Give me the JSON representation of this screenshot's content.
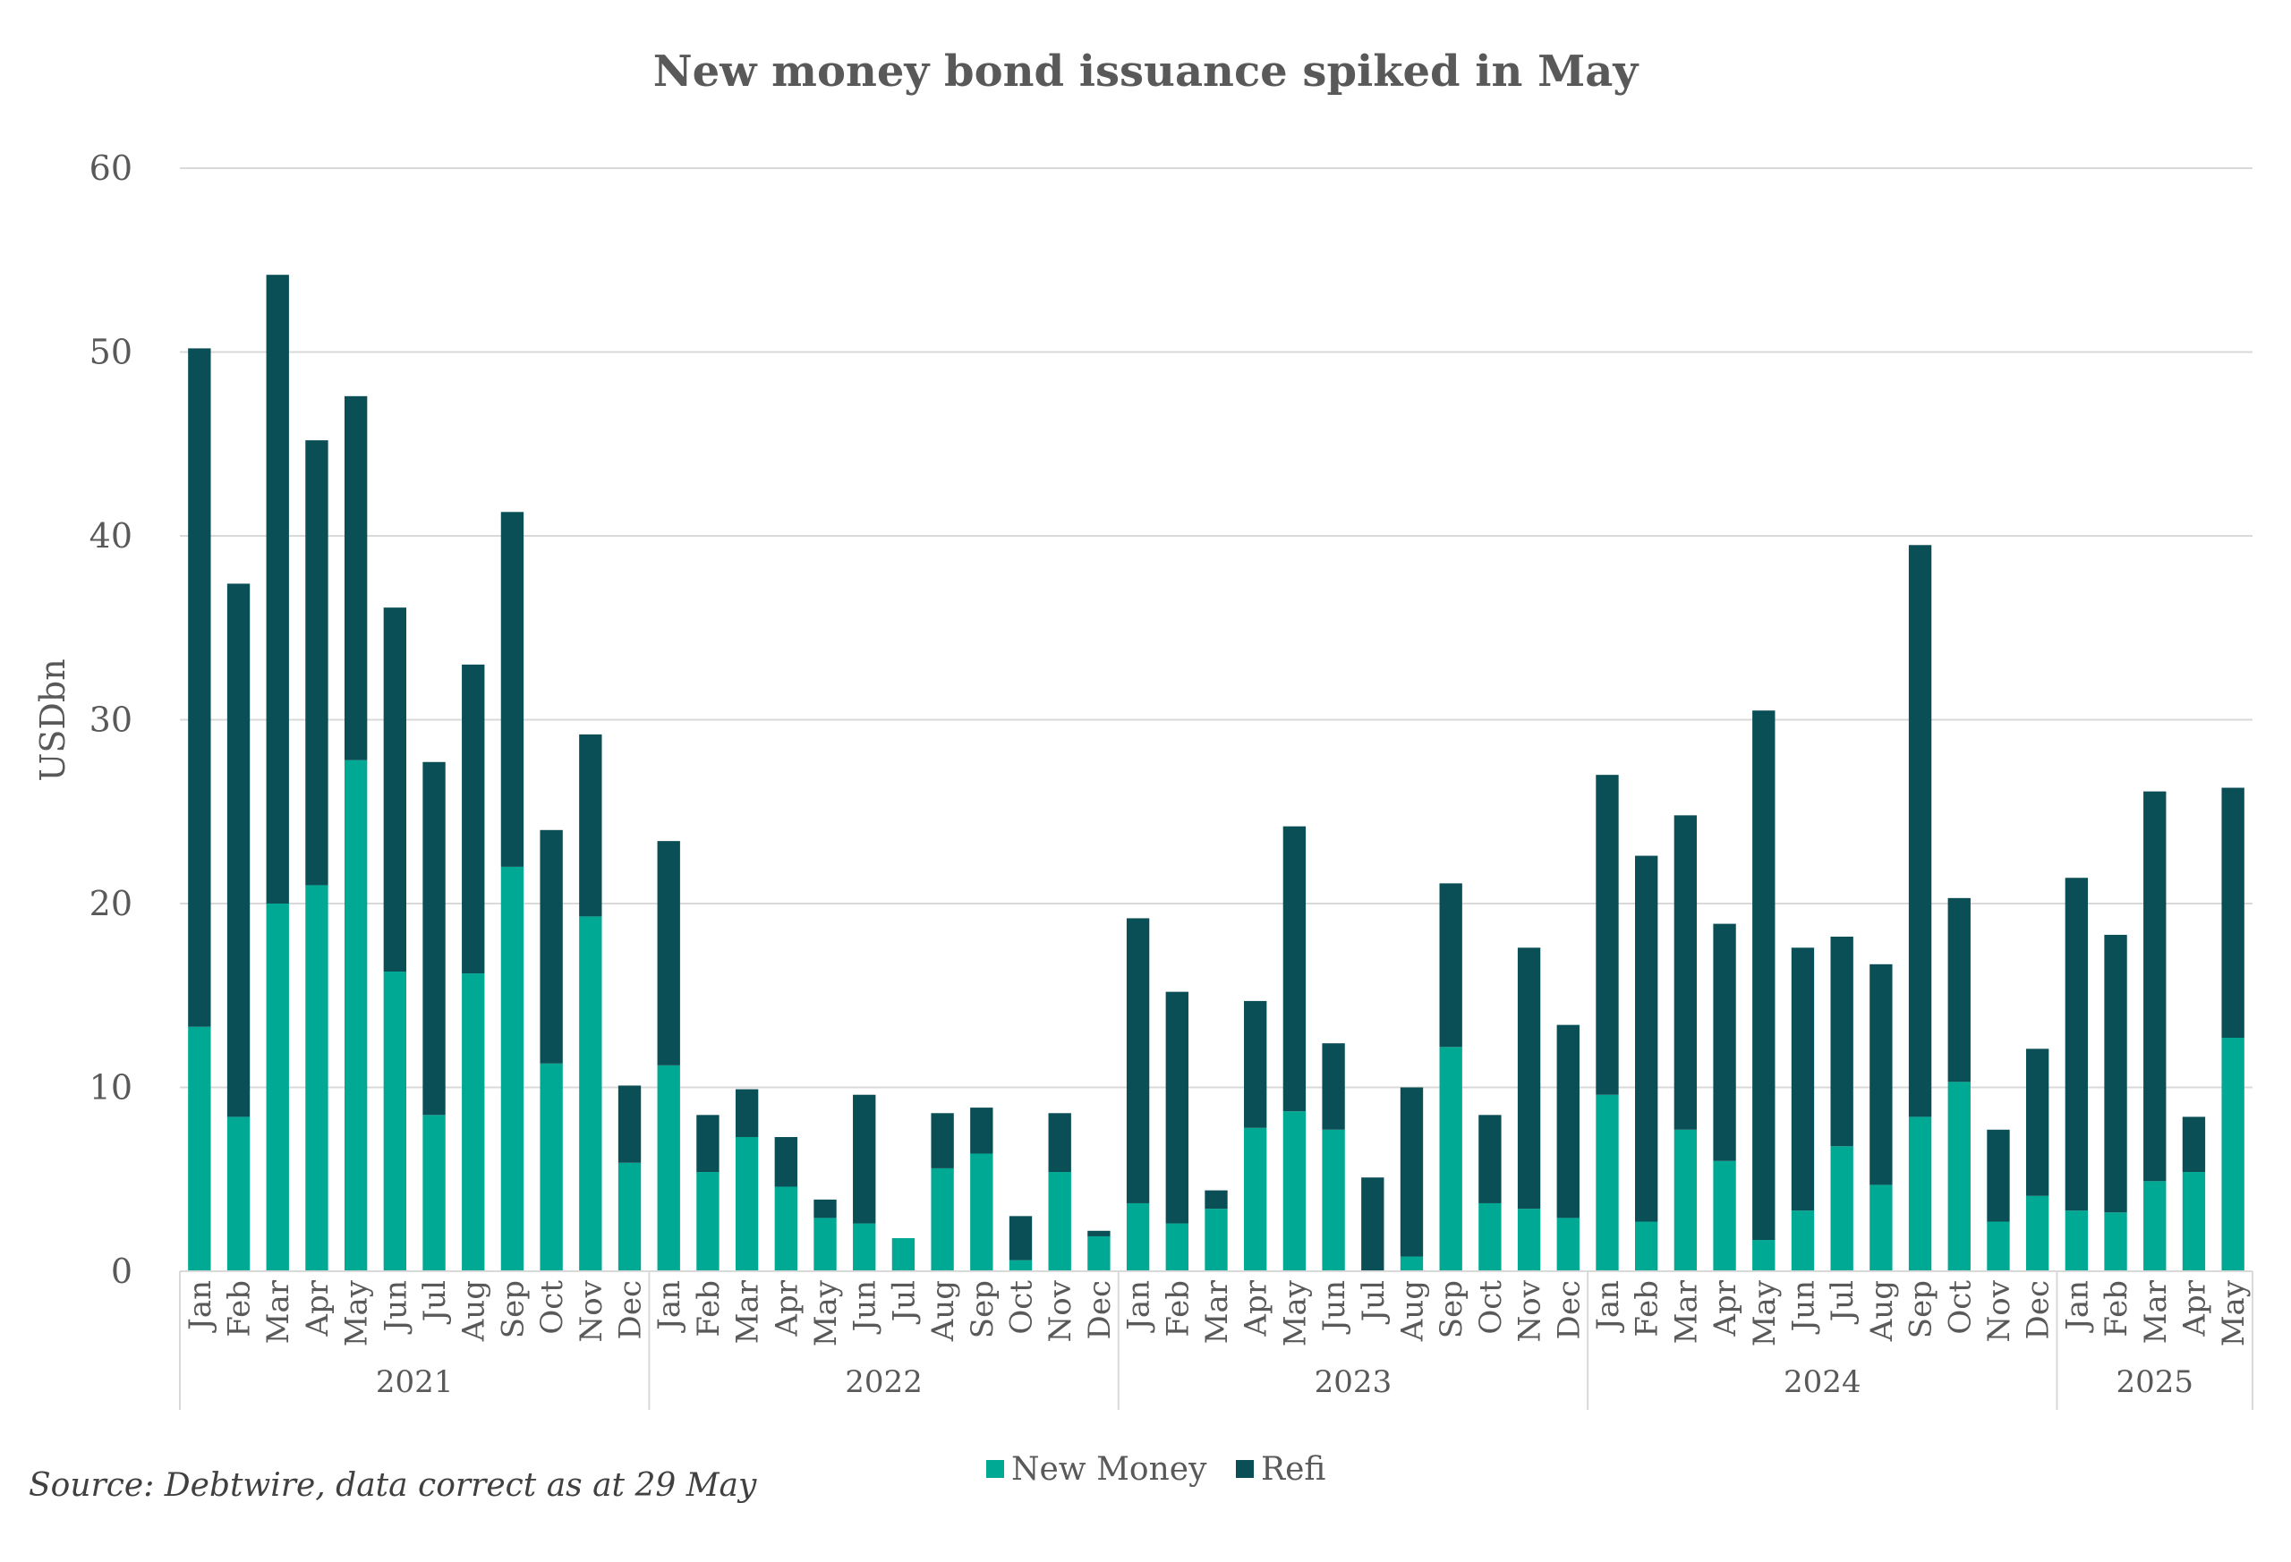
{
  "chart_data": {
    "type": "bar",
    "stacked": true,
    "title": "New money bond issuance spiked in May",
    "xlabel": "",
    "ylabel": "USDbn",
    "ylim": [
      0,
      60
    ],
    "yticks": [
      0,
      10,
      20,
      30,
      40,
      50,
      60
    ],
    "grid": true,
    "legend_position": "bottom",
    "source": "Source: Debtwire, data correct as at 29 May",
    "years": [
      {
        "label": "2021",
        "months": 12
      },
      {
        "label": "2022",
        "months": 12
      },
      {
        "label": "2023",
        "months": 12
      },
      {
        "label": "2024",
        "months": 12
      },
      {
        "label": "2025",
        "months": 5
      }
    ],
    "categories": [
      "Jan",
      "Feb",
      "Mar",
      "Apr",
      "May",
      "Jun",
      "Jul",
      "Aug",
      "Sep",
      "Oct",
      "Nov",
      "Dec",
      "Jan",
      "Feb",
      "Mar",
      "Apr",
      "May",
      "Jun",
      "Jul",
      "Aug",
      "Sep",
      "Oct",
      "Nov",
      "Dec",
      "Jan",
      "Feb",
      "Mar",
      "Apr",
      "May",
      "Jun",
      "Jul",
      "Aug",
      "Sep",
      "Oct",
      "Nov",
      "Dec",
      "Jan",
      "Feb",
      "Mar",
      "Apr",
      "May",
      "Jun",
      "Jul",
      "Aug",
      "Sep",
      "Oct",
      "Nov",
      "Dec",
      "Jan",
      "Feb",
      "Mar",
      "Apr",
      "May"
    ],
    "series": [
      {
        "name": "New Money",
        "color": "#00a994",
        "values": [
          13.3,
          8.4,
          20.0,
          21.0,
          27.8,
          16.3,
          8.5,
          16.2,
          22.0,
          11.3,
          19.3,
          5.9,
          11.2,
          5.4,
          7.3,
          4.6,
          2.9,
          2.6,
          1.8,
          5.6,
          6.4,
          0.6,
          5.4,
          1.9,
          3.7,
          2.6,
          3.4,
          7.8,
          8.7,
          7.7,
          0.0,
          0.8,
          12.2,
          3.7,
          3.4,
          2.9,
          9.6,
          2.7,
          7.7,
          6.0,
          1.7,
          3.3,
          6.8,
          4.7,
          8.4,
          10.3,
          2.7,
          4.1,
          3.3,
          3.2,
          4.9,
          5.4,
          12.7
        ]
      },
      {
        "name": "Refi",
        "color": "#0a4f55",
        "values": [
          36.9,
          29.0,
          34.2,
          24.2,
          19.8,
          19.8,
          19.2,
          16.8,
          19.3,
          12.7,
          9.9,
          4.2,
          12.2,
          3.1,
          2.6,
          2.7,
          1.0,
          7.0,
          0.0,
          3.0,
          2.5,
          2.4,
          3.2,
          0.3,
          15.5,
          12.6,
          1.0,
          6.9,
          15.5,
          4.7,
          5.1,
          9.2,
          8.9,
          4.8,
          14.2,
          10.5,
          17.4,
          19.9,
          17.1,
          12.9,
          28.8,
          14.3,
          11.4,
          12.0,
          31.1,
          10.0,
          5.0,
          8.0,
          18.1,
          15.1,
          21.2,
          3.0,
          13.6
        ]
      }
    ]
  }
}
